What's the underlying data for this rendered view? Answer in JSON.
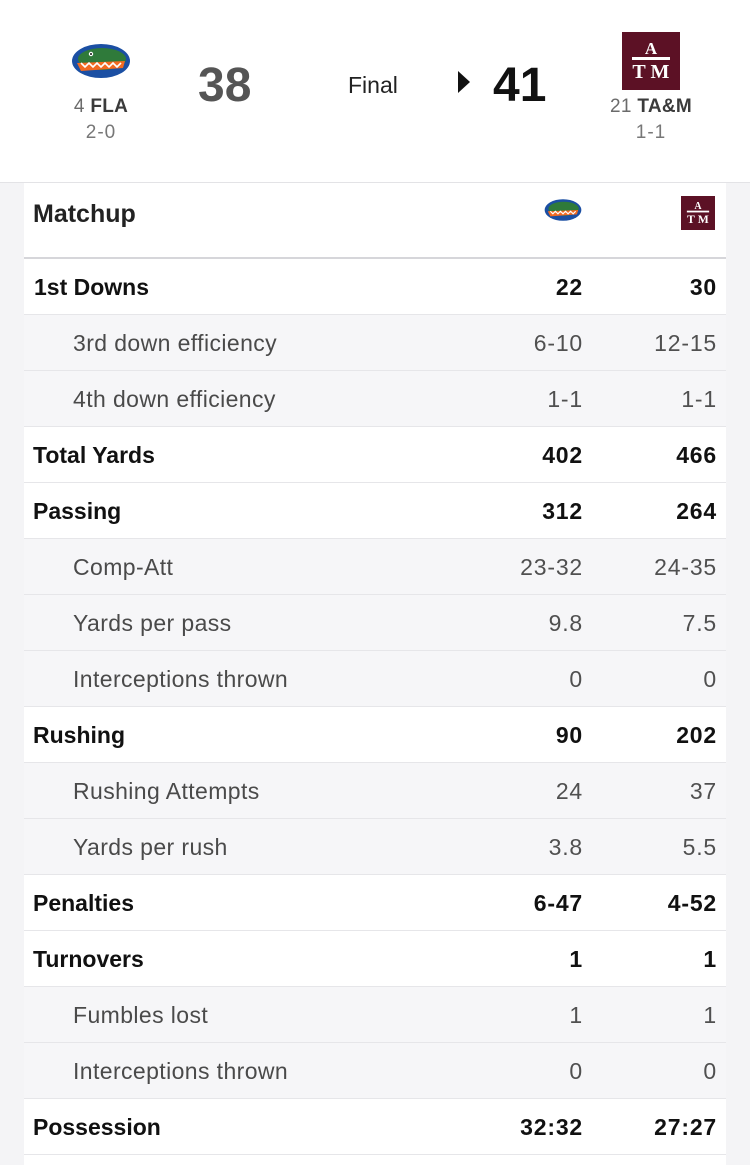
{
  "game": {
    "status": "Final",
    "away": {
      "rank": "4",
      "abbr": "FLA",
      "record": "2-0",
      "score": "38"
    },
    "home": {
      "rank": "21",
      "abbr": "TA&M",
      "record": "1-1",
      "score": "41"
    },
    "winner": "home"
  },
  "colors": {
    "gator_blue": "#1b4fa3",
    "gator_green": "#2f7a3a",
    "gator_orange": "#f26a21",
    "maroon": "#5c1125"
  },
  "matchup": {
    "title": "Matchup",
    "stats": [
      {
        "label": "1st Downs",
        "away": "22",
        "home": "30",
        "sub": false
      },
      {
        "label": "3rd down efficiency",
        "away": "6-10",
        "home": "12-15",
        "sub": true
      },
      {
        "label": "4th down efficiency",
        "away": "1-1",
        "home": "1-1",
        "sub": true
      },
      {
        "label": "Total Yards",
        "away": "402",
        "home": "466",
        "sub": false
      },
      {
        "label": "Passing",
        "away": "312",
        "home": "264",
        "sub": false
      },
      {
        "label": "Comp-Att",
        "away": "23-32",
        "home": "24-35",
        "sub": true
      },
      {
        "label": "Yards per pass",
        "away": "9.8",
        "home": "7.5",
        "sub": true
      },
      {
        "label": "Interceptions thrown",
        "away": "0",
        "home": "0",
        "sub": true
      },
      {
        "label": "Rushing",
        "away": "90",
        "home": "202",
        "sub": false
      },
      {
        "label": "Rushing Attempts",
        "away": "24",
        "home": "37",
        "sub": true
      },
      {
        "label": "Yards per rush",
        "away": "3.8",
        "home": "5.5",
        "sub": true
      },
      {
        "label": "Penalties",
        "away": "6-47",
        "home": "4-52",
        "sub": false
      },
      {
        "label": "Turnovers",
        "away": "1",
        "home": "1",
        "sub": false
      },
      {
        "label": "Fumbles lost",
        "away": "1",
        "home": "1",
        "sub": true
      },
      {
        "label": "Interceptions thrown",
        "away": "0",
        "home": "0",
        "sub": true
      },
      {
        "label": "Possession",
        "away": "32:32",
        "home": "27:27",
        "sub": false
      }
    ]
  }
}
